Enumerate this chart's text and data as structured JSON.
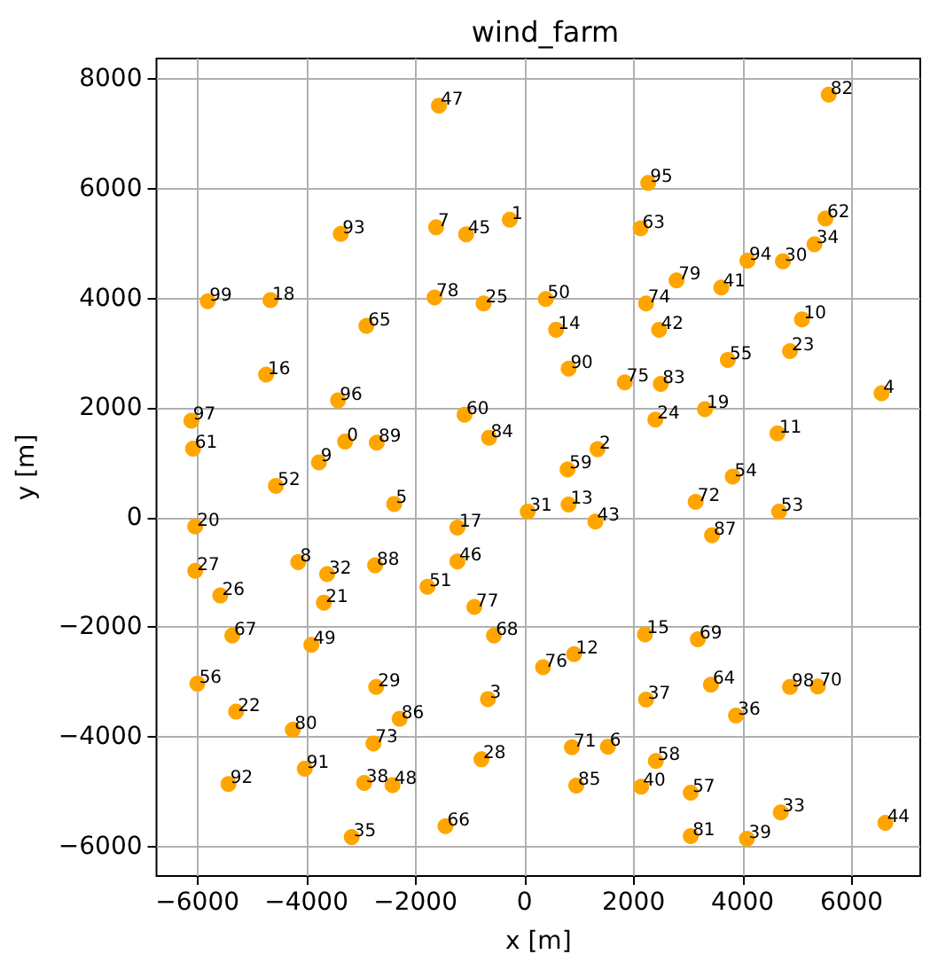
{
  "chart_data": {
    "type": "scatter",
    "title": "wind_farm",
    "xlabel": "x [m]",
    "ylabel": "y [m]",
    "color": "#ffa500",
    "marker": "circle",
    "grid": true,
    "xlim": [
      -6750,
      7260
    ],
    "ylim": [
      -6540,
      8380
    ],
    "xticks": [
      -6000,
      -4000,
      -2000,
      0,
      2000,
      4000,
      6000
    ],
    "yticks": [
      -6000,
      -4000,
      -2000,
      0,
      2000,
      4000,
      6000,
      8000
    ],
    "x": [
      -3290,
      -270,
      1340,
      -670,
      6550,
      -2390,
      1530,
      -1620,
      -4150,
      -3770,
      5090,
      4640,
      910,
      810,
      580,
      2210,
      -4740,
      -1230,
      -4660,
      3310,
      -6040,
      -3680,
      -5290,
      4870,
      2400,
      -750,
      -5580,
      -6040,
      -790,
      -2720,
      4740,
      60,
      -3620,
      4700,
      5320,
      -3170,
      3880,
      2230,
      -2940,
      4080,
      2140,
      3610,
      2470,
      1300,
      6620,
      -1070,
      -1230,
      -1570,
      -2420,
      -3910,
      390,
      -1780,
      -4560,
      4670,
      3820,
      3730,
      -6000,
      3050,
      2410,
      790,
      -1100,
      -6080,
      5520,
      2130,
      3420,
      -2900,
      -1450,
      -5360,
      -560,
      3180,
      5380,
      870,
      3140,
      -2770,
      2230,
      1840,
      340,
      -920,
      -1650,
      2790,
      -4250,
      3050,
      5580,
      2500,
      -650,
      950,
      -2290,
      3440,
      -2740,
      -2710,
      810,
      -4030,
      -5430,
      -3370,
      4090,
      2270,
      -3420,
      -6110,
      4870,
      -5810
    ],
    "values": [
      1390,
      5440,
      1250,
      -3310,
      2270,
      250,
      -4180,
      5300,
      -810,
      1010,
      3620,
      1540,
      -2490,
      240,
      3430,
      -2130,
      2610,
      -180,
      3970,
      1980,
      -160,
      -1550,
      -3540,
      3040,
      1790,
      3910,
      -1420,
      -970,
      -4410,
      -3090,
      4680,
      110,
      -1030,
      -5380,
      4990,
      -5830,
      -3610,
      -3320,
      -4840,
      -5860,
      -4910,
      4200,
      3430,
      -70,
      -5570,
      5170,
      -800,
      7520,
      -4880,
      -2320,
      3990,
      -1260,
      580,
      110,
      750,
      2880,
      -3030,
      -5020,
      -4440,
      880,
      1880,
      1260,
      5460,
      5280,
      -3050,
      3500,
      -5630,
      -2150,
      -2150,
      -2220,
      -3080,
      -4190,
      290,
      -4120,
      3910,
      2470,
      -2730,
      -1630,
      4020,
      4330,
      -3870,
      -5810,
      7720,
      2440,
      1460,
      -4890,
      -3670,
      -320,
      -870,
      1370,
      2720,
      -4580,
      -4860,
      5180,
      4690,
      6110,
      2140,
      1770,
      -3090,
      3950
    ],
    "annotations": [
      {
        "text": "0",
        "x": -3290,
        "y": 1390
      },
      {
        "text": "1",
        "x": -270,
        "y": 5440
      },
      {
        "text": "2",
        "x": 1340,
        "y": 1250
      },
      {
        "text": "3",
        "x": -670,
        "y": -3310
      },
      {
        "text": "4",
        "x": 6550,
        "y": 2270
      },
      {
        "text": "5",
        "x": -2390,
        "y": 250
      },
      {
        "text": "6",
        "x": 1530,
        "y": -4180
      },
      {
        "text": "7",
        "x": -1620,
        "y": 5300
      },
      {
        "text": "8",
        "x": -4150,
        "y": -810
      },
      {
        "text": "9",
        "x": -3770,
        "y": 1010
      },
      {
        "text": "10",
        "x": 5090,
        "y": 3620
      },
      {
        "text": "11",
        "x": 4640,
        "y": 1540
      },
      {
        "text": "12",
        "x": 910,
        "y": -2490
      },
      {
        "text": "13",
        "x": 810,
        "y": 240
      },
      {
        "text": "14",
        "x": 580,
        "y": 3430
      },
      {
        "text": "15",
        "x": 2210,
        "y": -2130
      },
      {
        "text": "16",
        "x": -4740,
        "y": 2610
      },
      {
        "text": "17",
        "x": -1230,
        "y": -180
      },
      {
        "text": "18",
        "x": -4660,
        "y": 3970
      },
      {
        "text": "19",
        "x": 3310,
        "y": 1980
      },
      {
        "text": "20",
        "x": -6040,
        "y": -160
      },
      {
        "text": "21",
        "x": -3680,
        "y": -1550
      },
      {
        "text": "22",
        "x": -5290,
        "y": -3540
      },
      {
        "text": "23",
        "x": 4870,
        "y": 3040
      },
      {
        "text": "24",
        "x": 2400,
        "y": 1790
      },
      {
        "text": "25",
        "x": -750,
        "y": 3910
      },
      {
        "text": "26",
        "x": -5580,
        "y": -1420
      },
      {
        "text": "27",
        "x": -6040,
        "y": -970
      },
      {
        "text": "28",
        "x": -790,
        "y": -4410
      },
      {
        "text": "29",
        "x": -2720,
        "y": -3090
      },
      {
        "text": "30",
        "x": 4740,
        "y": 4680
      },
      {
        "text": "31",
        "x": 60,
        "y": 110
      },
      {
        "text": "32",
        "x": -3620,
        "y": -1030
      },
      {
        "text": "33",
        "x": 4700,
        "y": -5380
      },
      {
        "text": "34",
        "x": 5320,
        "y": 4990
      },
      {
        "text": "35",
        "x": -3170,
        "y": -5830
      },
      {
        "text": "36",
        "x": 3880,
        "y": -3610
      },
      {
        "text": "37",
        "x": 2230,
        "y": -3320
      },
      {
        "text": "38",
        "x": -2940,
        "y": -4840
      },
      {
        "text": "39",
        "x": 4080,
        "y": -5860
      },
      {
        "text": "40",
        "x": 2140,
        "y": -4910
      },
      {
        "text": "41",
        "x": 3610,
        "y": 4200
      },
      {
        "text": "42",
        "x": 2470,
        "y": 3430
      },
      {
        "text": "43",
        "x": 1300,
        "y": -70
      },
      {
        "text": "44",
        "x": 6620,
        "y": -5570
      },
      {
        "text": "45",
        "x": -1070,
        "y": 5170
      },
      {
        "text": "46",
        "x": -1230,
        "y": -800
      },
      {
        "text": "47",
        "x": -1570,
        "y": 7520
      },
      {
        "text": "48",
        "x": -2420,
        "y": -4880
      },
      {
        "text": "49",
        "x": -3910,
        "y": -2320
      },
      {
        "text": "50",
        "x": 390,
        "y": 3990
      },
      {
        "text": "51",
        "x": -1780,
        "y": -1260
      },
      {
        "text": "52",
        "x": -4560,
        "y": 580
      },
      {
        "text": "53",
        "x": 4670,
        "y": 110
      },
      {
        "text": "54",
        "x": 3820,
        "y": 750
      },
      {
        "text": "55",
        "x": 3730,
        "y": 2880
      },
      {
        "text": "56",
        "x": -6000,
        "y": -3030
      },
      {
        "text": "57",
        "x": 3050,
        "y": -5020
      },
      {
        "text": "58",
        "x": 2410,
        "y": -4440
      },
      {
        "text": "59",
        "x": 790,
        "y": 880
      },
      {
        "text": "60",
        "x": -1100,
        "y": 1880
      },
      {
        "text": "61",
        "x": -6080,
        "y": 1260
      },
      {
        "text": "62",
        "x": 5520,
        "y": 5460
      },
      {
        "text": "63",
        "x": 2130,
        "y": 5280
      },
      {
        "text": "64",
        "x": 3420,
        "y": -3050
      },
      {
        "text": "65",
        "x": -2900,
        "y": 3500
      },
      {
        "text": "66",
        "x": -1450,
        "y": -5630
      },
      {
        "text": "67",
        "x": -5360,
        "y": -2150
      },
      {
        "text": "68",
        "x": -560,
        "y": -2150
      },
      {
        "text": "69",
        "x": 3180,
        "y": -2220
      },
      {
        "text": "70",
        "x": 5380,
        "y": -3080
      },
      {
        "text": "71",
        "x": 870,
        "y": -4190
      },
      {
        "text": "72",
        "x": 3140,
        "y": 290
      },
      {
        "text": "73",
        "x": -2770,
        "y": -4120
      },
      {
        "text": "74",
        "x": 2230,
        "y": 3910
      },
      {
        "text": "75",
        "x": 1840,
        "y": 2470
      },
      {
        "text": "76",
        "x": 340,
        "y": -2730
      },
      {
        "text": "77",
        "x": -920,
        "y": -1630
      },
      {
        "text": "78",
        "x": -1650,
        "y": 4020
      },
      {
        "text": "79",
        "x": 2790,
        "y": 4330
      },
      {
        "text": "80",
        "x": -4250,
        "y": -3870
      },
      {
        "text": "81",
        "x": 3050,
        "y": -5810
      },
      {
        "text": "82",
        "x": 5580,
        "y": 7720
      },
      {
        "text": "83",
        "x": 2500,
        "y": 2440
      },
      {
        "text": "84",
        "x": -650,
        "y": 1460
      },
      {
        "text": "85",
        "x": 950,
        "y": -4890
      },
      {
        "text": "86",
        "x": -2290,
        "y": -3670
      },
      {
        "text": "87",
        "x": 3440,
        "y": -320
      },
      {
        "text": "88",
        "x": -2740,
        "y": -870
      },
      {
        "text": "89",
        "x": -2710,
        "y": 1370
      },
      {
        "text": "90",
        "x": 810,
        "y": 2720
      },
      {
        "text": "91",
        "x": -4030,
        "y": -4580
      },
      {
        "text": "92",
        "x": -5430,
        "y": -4860
      },
      {
        "text": "93",
        "x": -3370,
        "y": 5180
      },
      {
        "text": "94",
        "x": 4090,
        "y": 4690
      },
      {
        "text": "95",
        "x": 2270,
        "y": 6110
      },
      {
        "text": "96",
        "x": -3420,
        "y": 2140
      },
      {
        "text": "97",
        "x": -6110,
        "y": 1770
      },
      {
        "text": "98",
        "x": 4870,
        "y": -3090
      },
      {
        "text": "99",
        "x": -5810,
        "y": 3950
      }
    ]
  }
}
